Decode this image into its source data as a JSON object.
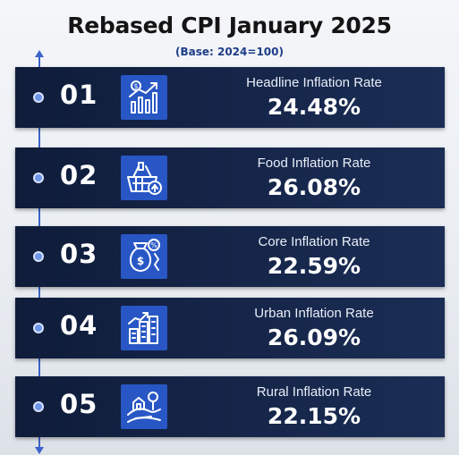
{
  "header": {
    "title": "Rebased CPI January 2025",
    "subtitle": "(Base: 2024=100)"
  },
  "colors": {
    "card_bg": "#16264a",
    "icon_bg": "#2857c5",
    "timeline": "#3b63c9",
    "subtitle": "#1d3d86"
  },
  "items": [
    {
      "number": "01",
      "label": "Headline Inflation Rate",
      "value": "24.48%",
      "icon": "growth-chart-icon"
    },
    {
      "number": "02",
      "label": "Food Inflation Rate",
      "value": "26.08%",
      "icon": "food-basket-icon"
    },
    {
      "number": "03",
      "label": "Core Inflation Rate",
      "value": "22.59%",
      "icon": "money-bag-icon"
    },
    {
      "number": "04",
      "label": "Urban Inflation Rate",
      "value": "26.09%",
      "icon": "city-buildings-icon"
    },
    {
      "number": "05",
      "label": "Rural Inflation Rate",
      "value": "22.15%",
      "icon": "rural-landscape-icon"
    }
  ]
}
